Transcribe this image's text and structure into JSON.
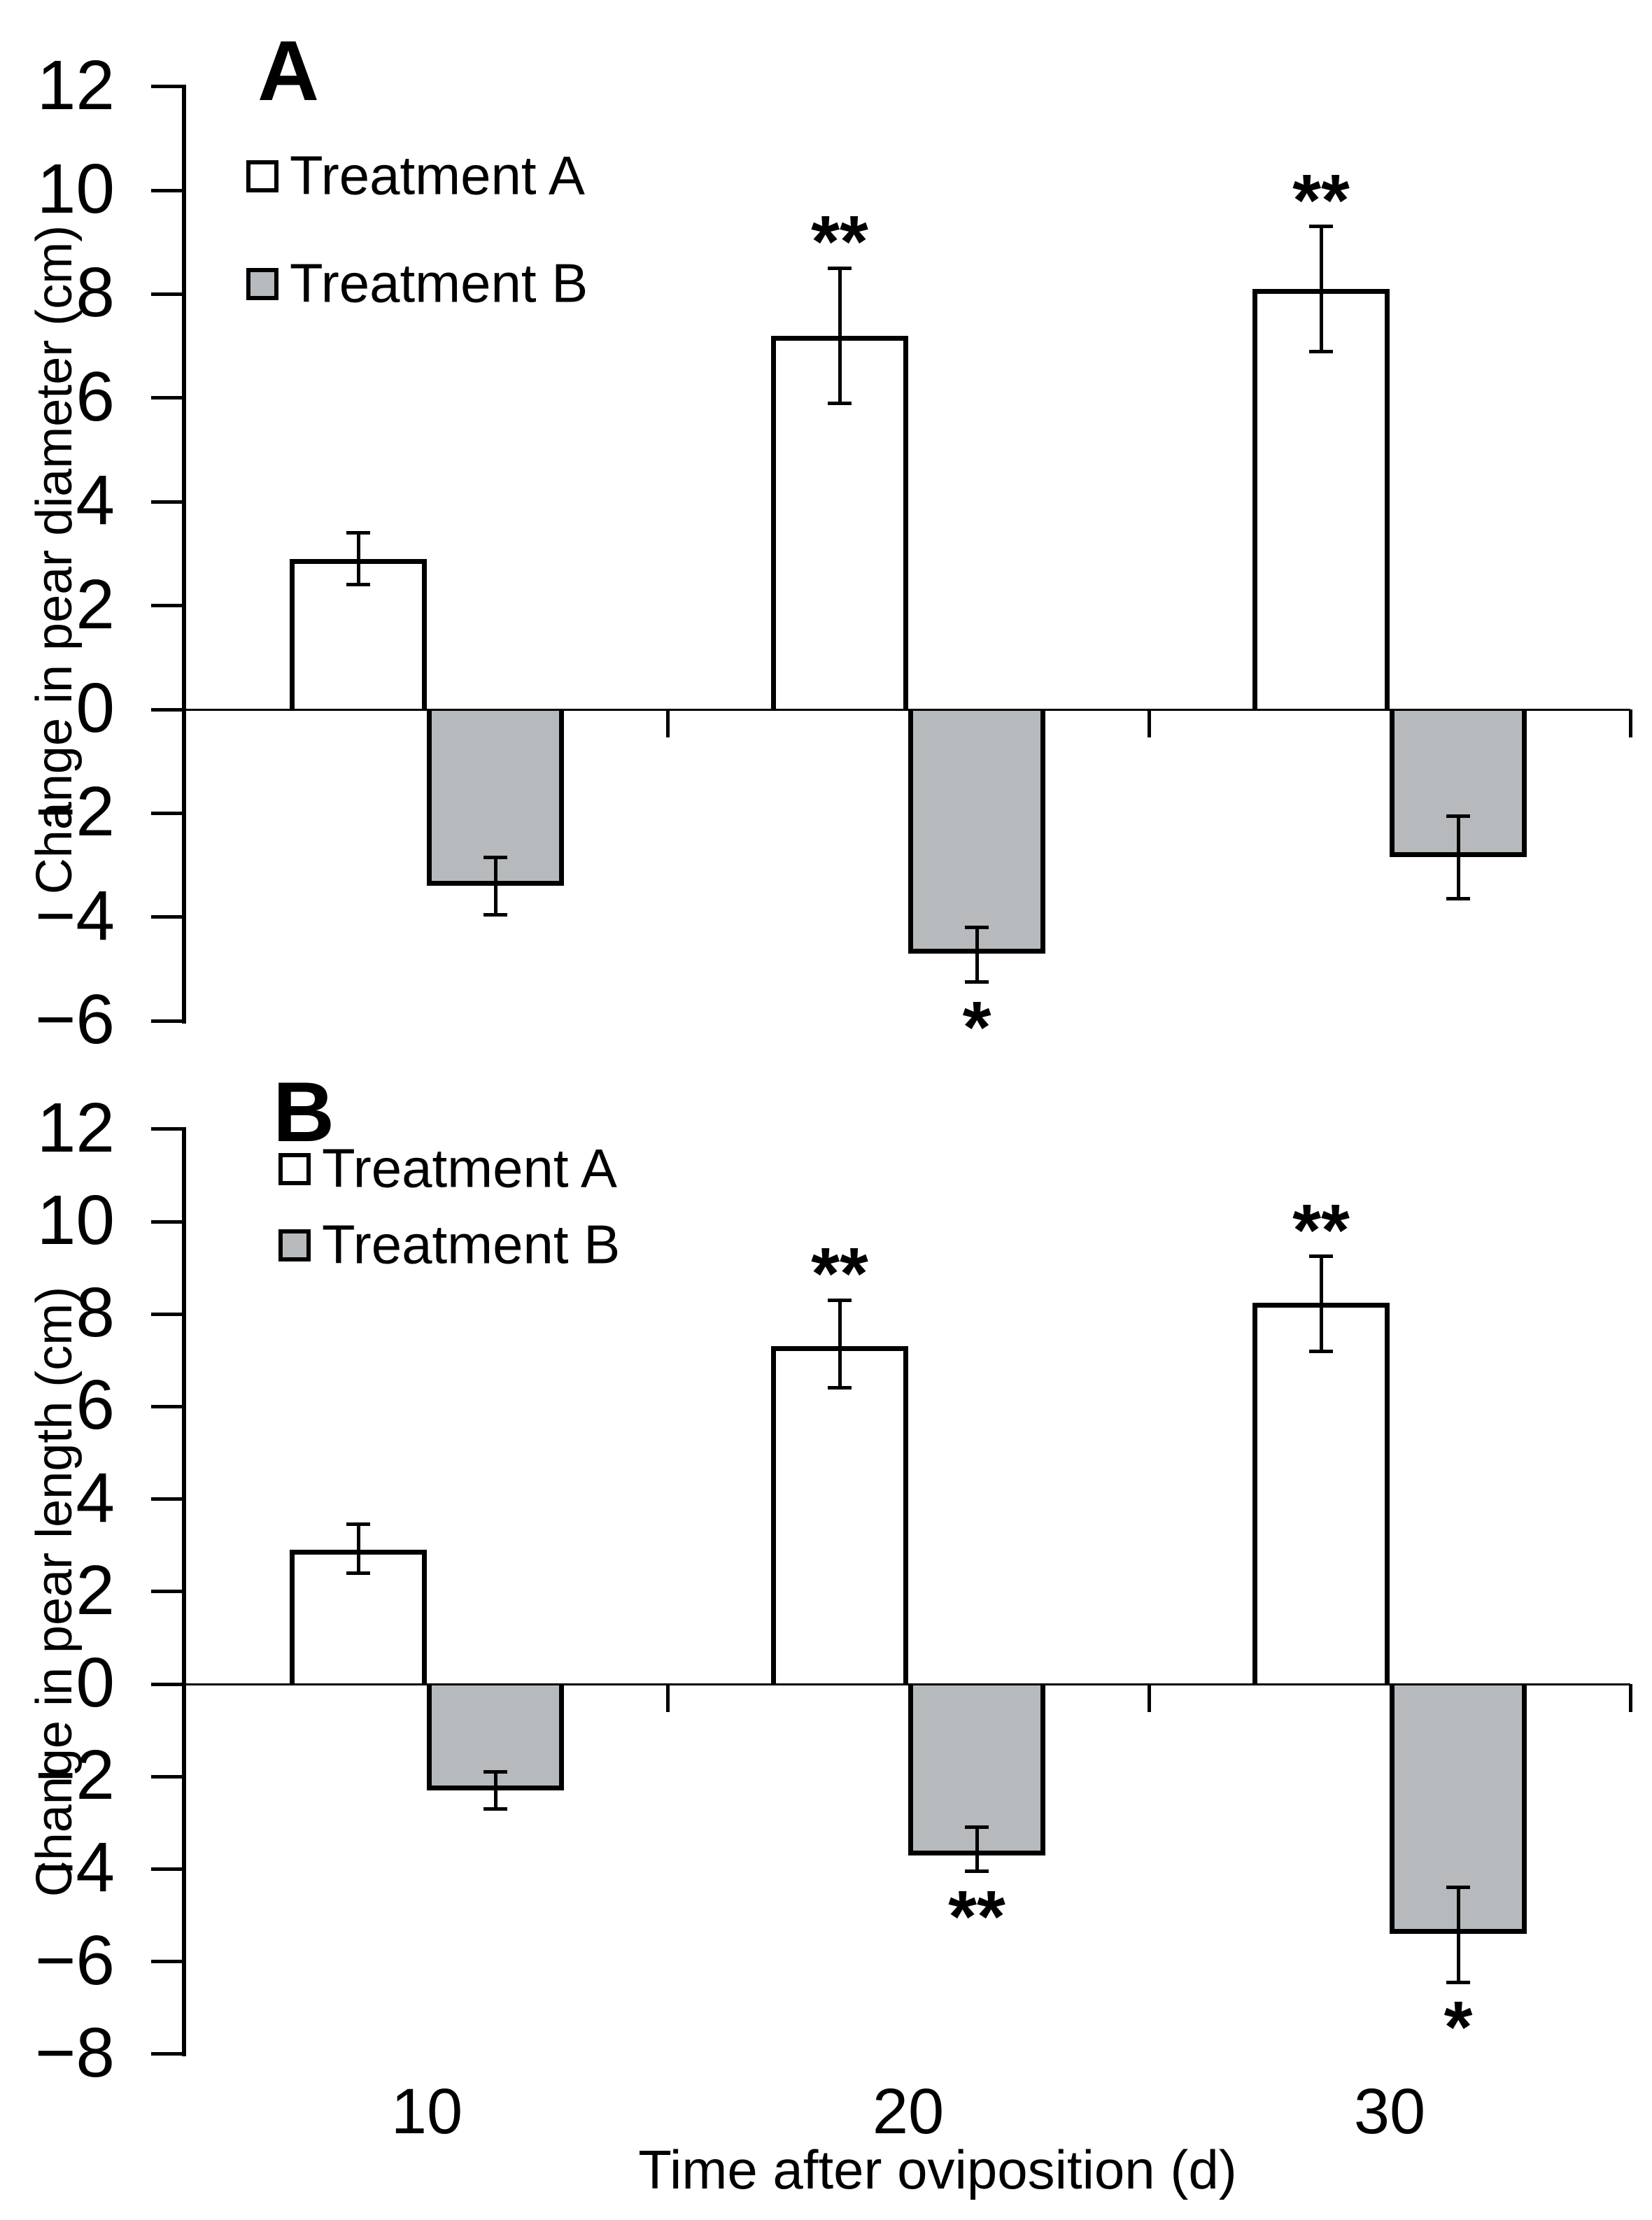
{
  "figure": {
    "background": "#ffffff",
    "description_visible_text_only": true
  },
  "chart_data": {
    "type": "bar",
    "grid": "off",
    "legend_position": "top-left-inside",
    "x_axis": {
      "label": "Time after oviposition (d)",
      "categories": [
        "10",
        "20",
        "30"
      ],
      "tick_labels_shown": "bottom panel only"
    },
    "colors": {
      "treatment_a_fill": "#ffffff",
      "treatment_b_fill": "#b7babc",
      "line": "#000000",
      "text": "#000000"
    },
    "panels": [
      {
        "letter": "A",
        "ylabel": "Change in pear diameter (cm)",
        "ylim": [
          -6,
          12
        ],
        "ytick_step": 2,
        "yticks": [
          12,
          10,
          8,
          6,
          4,
          2,
          0,
          -2,
          -4,
          -6
        ],
        "legend": [
          "Treatment A",
          "Treatment B"
        ],
        "series": [
          {
            "name": "Treatment A",
            "fill": "#ffffff",
            "values": [
              2.9,
              7.2,
              8.1
            ],
            "err_upper": [
              3.4,
              8.5,
              9.3
            ],
            "err_lower": [
              2.4,
              5.9,
              6.9
            ],
            "significance": [
              "",
              "**",
              "**"
            ],
            "sig_side": "above"
          },
          {
            "name": "Treatment B",
            "fill": "#b7babc",
            "values": [
              -3.4,
              -4.7,
              -2.85
            ],
            "err_upper": [
              -2.85,
              -4.2,
              -2.05
            ],
            "err_lower": [
              -3.95,
              -5.25,
              -3.65
            ],
            "significance": [
              "",
              "*",
              ""
            ],
            "sig_side": "below"
          }
        ]
      },
      {
        "letter": "B",
        "ylabel": "Change in pear length (cm)",
        "ylim": [
          -8,
          12
        ],
        "ytick_step": 2,
        "yticks": [
          12,
          10,
          8,
          6,
          4,
          2,
          0,
          -2,
          -4,
          -6,
          -8
        ],
        "legend": [
          "Treatment A",
          "Treatment B"
        ],
        "series": [
          {
            "name": "Treatment A",
            "fill": "#ffffff",
            "values": [
              2.9,
              7.3,
              8.25
            ],
            "err_upper": [
              3.45,
              8.3,
              9.25
            ],
            "err_lower": [
              2.4,
              6.4,
              7.2
            ],
            "significance": [
              "",
              "**",
              "**"
            ],
            "sig_side": "above"
          },
          {
            "name": "Treatment B",
            "fill": "#b7babc",
            "values": [
              -2.3,
              -3.7,
              -5.4
            ],
            "err_upper": [
              -1.9,
              -3.1,
              -4.4
            ],
            "err_lower": [
              -2.7,
              -4.05,
              -6.45
            ],
            "significance": [
              "",
              "**",
              "*"
            ],
            "sig_side": "below"
          }
        ]
      }
    ]
  }
}
